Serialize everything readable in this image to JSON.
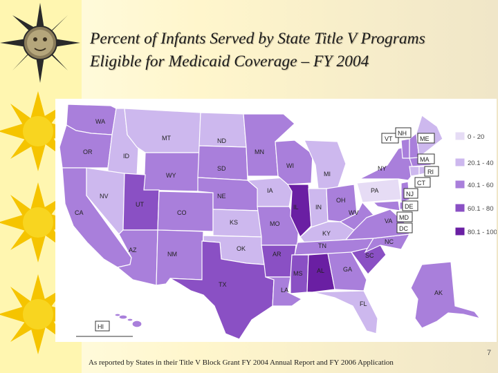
{
  "title": {
    "line1": "Percent of Infants Served by State Title V Programs",
    "line2": "Eligible for Medicaid Coverage – FY 2004"
  },
  "footer": "As reported by States in their Title V Block Grant FY 2004 Annual Report and FY 2006 Application",
  "page_number": "7",
  "legend": [
    {
      "label": "0 - 20",
      "color": "#e6dcf5"
    },
    {
      "label": "20.1 - 40",
      "color": "#cdb8ee"
    },
    {
      "label": "40.1 - 60",
      "color": "#a97fdb"
    },
    {
      "label": "60.1 - 80",
      "color": "#8a50c4"
    },
    {
      "label": "80.1 - 100",
      "color": "#6a1fa3"
    }
  ],
  "states": {
    "WA": "WA",
    "OR": "OR",
    "CA": "CA",
    "ID": "ID",
    "NV": "NV",
    "MT": "MT",
    "WY": "WY",
    "UT": "UT",
    "AZ": "AZ",
    "CO": "CO",
    "NM": "NM",
    "ND": "ND",
    "SD": "SD",
    "NE": "NE",
    "KS": "KS",
    "OK": "OK",
    "TX": "TX",
    "MN": "MN",
    "IA": "IA",
    "MO": "MO",
    "AR": "AR",
    "LA": "LA",
    "WI": "WI",
    "IL": "IL",
    "MI": "MI",
    "IN": "IN",
    "OH": "OH",
    "KY": "KY",
    "TN": "TN",
    "MS": "MS",
    "AL": "AL",
    "GA": "GA",
    "FL": "FL",
    "SC": "SC",
    "NC": "NC",
    "VA": "VA",
    "WV": "WV",
    "PA": "PA",
    "NY": "NY",
    "VT": "VT",
    "NH": "NH",
    "ME": "ME",
    "MA": "MA",
    "RI": "RI",
    "CT": "CT",
    "NJ": "NJ",
    "DE": "DE",
    "MD": "MD",
    "DC": "DC",
    "AK": "AK",
    "HI": "HI"
  },
  "icons": [
    "sun-face-icon",
    "sun-icon"
  ]
}
